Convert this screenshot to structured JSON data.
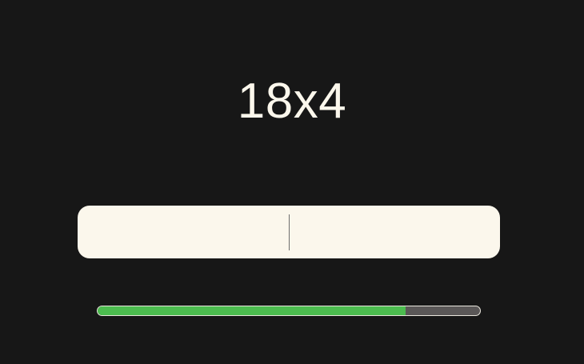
{
  "quiz": {
    "problem": "18x4",
    "answer_value": "",
    "progress_fraction": 0.805
  },
  "colors": {
    "background": "#171717",
    "text": "#fbf7ec",
    "input_background": "#fbf7ec",
    "progress_fill": "#4cbc4f",
    "progress_track": "#5a5757"
  }
}
